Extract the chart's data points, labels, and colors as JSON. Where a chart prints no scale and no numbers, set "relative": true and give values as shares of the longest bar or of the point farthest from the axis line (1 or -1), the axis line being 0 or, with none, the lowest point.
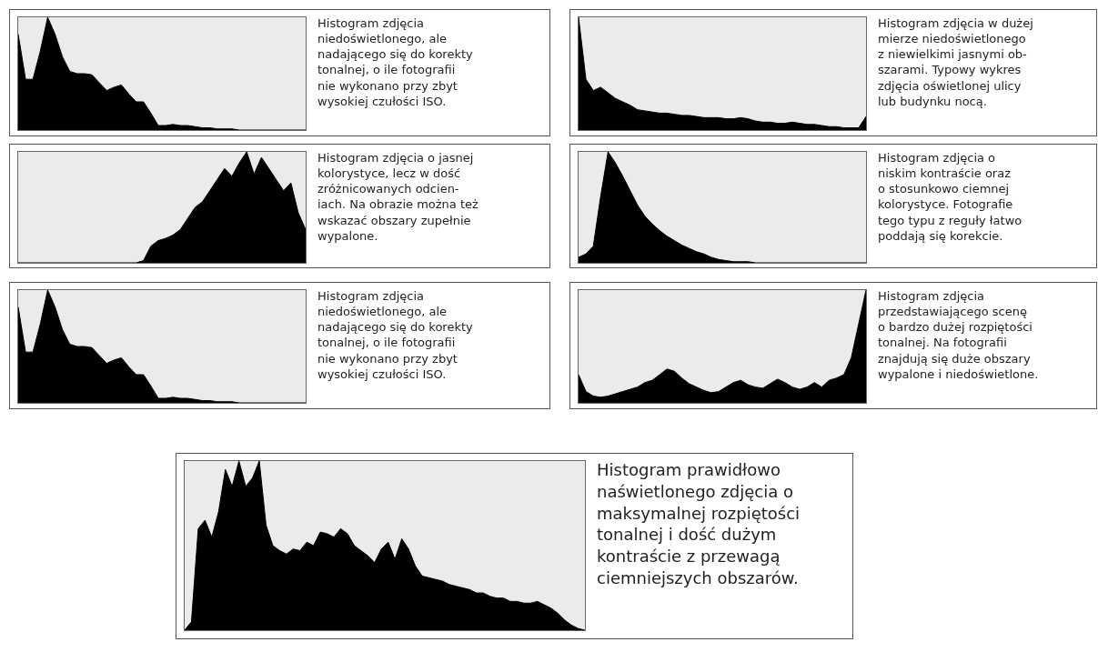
{
  "chart_data": [
    {
      "type": "area",
      "relative": true,
      "categories": [
        null,
        null,
        null,
        null,
        null,
        null,
        null,
        null,
        null,
        null,
        null,
        null,
        null,
        null,
        null,
        null,
        null,
        null,
        null,
        null,
        null,
        null,
        null,
        null,
        null,
        null,
        null,
        null,
        null,
        null,
        null,
        null,
        null,
        null,
        null,
        null,
        null,
        null,
        null,
        null
      ],
      "series": [
        {
          "color": "#000000",
          "values": [
            0.85,
            0.45,
            0.45,
            0.7,
            1.0,
            0.85,
            0.65,
            0.52,
            0.5,
            0.5,
            0.49,
            0.42,
            0.35,
            0.38,
            0.4,
            0.32,
            0.25,
            0.25,
            0.15,
            0.04,
            0.04,
            0.05,
            0.04,
            0.04,
            0.03,
            0.02,
            0.02,
            0.01,
            0.01,
            0.01,
            0.0,
            0.0,
            0.0,
            0.0,
            0.0,
            0.0,
            0.0,
            0.0,
            0.0,
            0.0
          ]
        }
      ],
      "annotations": [
        "Histogram zdjęcia\nniedoświetlonego, ale\nnadającego się do korekty\ntonalnej, o ile fotografii\nnie wykonano przy zbyt\nwysokiej czułości ISO."
      ]
    },
    {
      "type": "area",
      "relative": true,
      "categories": [
        null,
        null,
        null,
        null,
        null,
        null,
        null,
        null,
        null,
        null,
        null,
        null,
        null,
        null,
        null,
        null,
        null,
        null,
        null,
        null,
        null,
        null,
        null,
        null,
        null,
        null,
        null,
        null,
        null,
        null,
        null,
        null,
        null,
        null,
        null,
        null,
        null,
        null,
        null,
        null
      ],
      "series": [
        {
          "color": "#000000",
          "values": [
            1.0,
            0.45,
            0.35,
            0.38,
            0.33,
            0.28,
            0.25,
            0.22,
            0.18,
            0.17,
            0.16,
            0.15,
            0.15,
            0.14,
            0.13,
            0.13,
            0.12,
            0.11,
            0.11,
            0.11,
            0.1,
            0.1,
            0.11,
            0.1,
            0.08,
            0.07,
            0.07,
            0.06,
            0.06,
            0.07,
            0.06,
            0.05,
            0.05,
            0.04,
            0.03,
            0.03,
            0.02,
            0.02,
            0.02,
            0.12
          ]
        }
      ],
      "annotations": [
        "Histogram zdjęcia w dużej\nmierze niedoświetlonego\nz niewielkimi jasnymi ob-\nszarami. Typowy wykres\nzdjęcia oświetlonej ulicy\nlub budynku nocą."
      ]
    },
    {
      "type": "area",
      "relative": true,
      "categories": [
        null,
        null,
        null,
        null,
        null,
        null,
        null,
        null,
        null,
        null,
        null,
        null,
        null,
        null,
        null,
        null,
        null,
        null,
        null,
        null,
        null,
        null,
        null,
        null,
        null,
        null,
        null,
        null,
        null,
        null,
        null,
        null,
        null,
        null,
        null,
        null,
        null,
        null,
        null,
        null
      ],
      "series": [
        {
          "color": "#000000",
          "values": [
            0,
            0,
            0,
            0,
            0,
            0,
            0,
            0,
            0,
            0,
            0,
            0,
            0,
            0,
            0,
            0,
            0,
            0.02,
            0.15,
            0.2,
            0.22,
            0.25,
            0.3,
            0.4,
            0.5,
            0.55,
            0.65,
            0.75,
            0.85,
            0.78,
            0.9,
            1.0,
            0.8,
            0.95,
            0.85,
            0.75,
            0.65,
            0.72,
            0.45,
            0.3
          ]
        }
      ],
      "annotations": [
        "Histogram zdjęcia o jasnej\nkolorystyce, lecz w dość\nzróżnicowanych odcien-\niach. Na obrazie można też\nwskazać obszary zupełnie\nwypalone."
      ]
    },
    {
      "type": "area",
      "relative": true,
      "categories": [
        null,
        null,
        null,
        null,
        null,
        null,
        null,
        null,
        null,
        null,
        null,
        null,
        null,
        null,
        null,
        null,
        null,
        null,
        null,
        null,
        null,
        null,
        null,
        null,
        null,
        null,
        null,
        null,
        null,
        null,
        null,
        null,
        null,
        null,
        null,
        null,
        null,
        null,
        null,
        null
      ],
      "series": [
        {
          "color": "#000000",
          "values": [
            0.05,
            0.08,
            0.15,
            0.6,
            1.0,
            0.9,
            0.78,
            0.65,
            0.52,
            0.42,
            0.35,
            0.29,
            0.24,
            0.2,
            0.16,
            0.13,
            0.1,
            0.08,
            0.05,
            0.03,
            0.02,
            0.01,
            0.01,
            0.01,
            0,
            0,
            0,
            0,
            0,
            0,
            0,
            0,
            0,
            0,
            0,
            0,
            0,
            0,
            0,
            0
          ]
        }
      ],
      "annotations": [
        "Histogram zdjęcia o\nniskim kontraście oraz\no stosunkowo ciemnej\nkolorystyce. Fotografie\ntego typu z reguły łatwo\npoddają się korekcie."
      ]
    },
    {
      "type": "area",
      "relative": true,
      "categories": [
        null,
        null,
        null,
        null,
        null,
        null,
        null,
        null,
        null,
        null,
        null,
        null,
        null,
        null,
        null,
        null,
        null,
        null,
        null,
        null,
        null,
        null,
        null,
        null,
        null,
        null,
        null,
        null,
        null,
        null,
        null,
        null,
        null,
        null,
        null,
        null,
        null,
        null,
        null,
        null
      ],
      "series": [
        {
          "color": "#000000",
          "values": [
            0.85,
            0.45,
            0.45,
            0.7,
            1.0,
            0.85,
            0.65,
            0.52,
            0.5,
            0.5,
            0.49,
            0.42,
            0.35,
            0.38,
            0.4,
            0.32,
            0.25,
            0.25,
            0.15,
            0.04,
            0.04,
            0.05,
            0.04,
            0.04,
            0.03,
            0.02,
            0.02,
            0.01,
            0.01,
            0.01,
            0.0,
            0.0,
            0.0,
            0.0,
            0.0,
            0.0,
            0.0,
            0.0,
            0.0,
            0.0
          ]
        }
      ],
      "annotations": [
        "Histogram zdjęcia\nniedoświetlonego, ale\nnadającego się do korekty\ntonalnej, o ile fotografii\nnie wykonano przy zbyt\nwysokiej czułości ISO."
      ]
    },
    {
      "type": "area",
      "relative": true,
      "categories": [
        null,
        null,
        null,
        null,
        null,
        null,
        null,
        null,
        null,
        null,
        null,
        null,
        null,
        null,
        null,
        null,
        null,
        null,
        null,
        null,
        null,
        null,
        null,
        null,
        null,
        null,
        null,
        null,
        null,
        null,
        null,
        null,
        null,
        null,
        null,
        null,
        null,
        null,
        null,
        null
      ],
      "series": [
        {
          "color": "#000000",
          "values": [
            0.25,
            0.1,
            0.06,
            0.05,
            0.06,
            0.08,
            0.1,
            0.12,
            0.14,
            0.18,
            0.2,
            0.25,
            0.3,
            0.28,
            0.22,
            0.17,
            0.14,
            0.11,
            0.09,
            0.1,
            0.14,
            0.18,
            0.2,
            0.16,
            0.14,
            0.13,
            0.17,
            0.21,
            0.18,
            0.14,
            0.12,
            0.14,
            0.18,
            0.14,
            0.2,
            0.22,
            0.25,
            0.4,
            0.7,
            1.0
          ]
        }
      ],
      "annotations": [
        "Histogram zdjęcia\nprzedstawiającego scenę\no bardzo dużej rozpiętości\ntonalnej. Na fotografii\nznajdują się duże obszary\nwypalone i niedoświetlone."
      ]
    },
    {
      "type": "area",
      "relative": true,
      "categories": [
        null,
        null,
        null,
        null,
        null,
        null,
        null,
        null,
        null,
        null,
        null,
        null,
        null,
        null,
        null,
        null,
        null,
        null,
        null,
        null,
        null,
        null,
        null,
        null,
        null,
        null,
        null,
        null,
        null,
        null,
        null,
        null,
        null,
        null,
        null,
        null,
        null,
        null,
        null,
        null,
        null,
        null,
        null,
        null,
        null,
        null,
        null,
        null,
        null,
        null,
        null,
        null,
        null,
        null,
        null,
        null,
        null,
        null,
        null,
        null
      ],
      "series": [
        {
          "color": "#000000",
          "values": [
            0.0,
            0.05,
            0.6,
            0.65,
            0.55,
            0.7,
            0.95,
            0.85,
            1.0,
            0.85,
            0.9,
            1.0,
            0.62,
            0.5,
            0.47,
            0.45,
            0.48,
            0.47,
            0.52,
            0.5,
            0.58,
            0.57,
            0.55,
            0.6,
            0.57,
            0.5,
            0.47,
            0.44,
            0.4,
            0.48,
            0.52,
            0.42,
            0.54,
            0.48,
            0.38,
            0.32,
            0.31,
            0.3,
            0.29,
            0.27,
            0.26,
            0.25,
            0.24,
            0.22,
            0.22,
            0.2,
            0.19,
            0.19,
            0.17,
            0.17,
            0.16,
            0.16,
            0.17,
            0.15,
            0.13,
            0.1,
            0.06,
            0.03,
            0.01,
            0.0
          ]
        }
      ],
      "annotations": [
        "Histogram prawidłowo\nnaświetlonego zdjęcia o\nmaksymalnej rozpiętości\ntonalnej i dość dużym\nkontraście z przewagą\nciemniejszych obszarów."
      ]
    }
  ]
}
